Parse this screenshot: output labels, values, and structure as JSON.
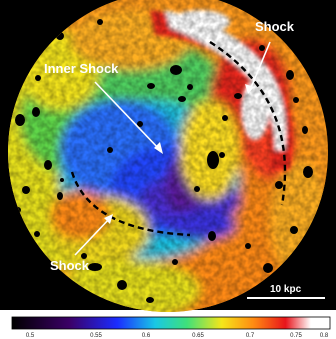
{
  "image": {
    "description_free": true,
    "annotations": {
      "inner_shock": "Inner Shock",
      "shock_top": "Shock",
      "shock_bottom": "Shock",
      "scale_bar": "10 kpc"
    },
    "colorbar": {
      "ticks": [
        "0.5",
        "0.55",
        "0.6",
        "0.65",
        "0.7",
        "0.75",
        "0.8"
      ],
      "colors": [
        "#000000",
        "#3b0066",
        "#1b2cff",
        "#19c7e5",
        "#3fe07a",
        "#f5e61a",
        "#ff8a12",
        "#e8141b",
        "#ffffff"
      ]
    },
    "palette": {
      "background": "#000000",
      "white": "#ffffff",
      "red": "#e8271a",
      "orange": "#ff9a1c",
      "yellow": "#f2e516",
      "green": "#5fd64a",
      "cyan": "#1bc3e0",
      "blue": "#2346ff",
      "purple": "#5a1a9a"
    }
  }
}
